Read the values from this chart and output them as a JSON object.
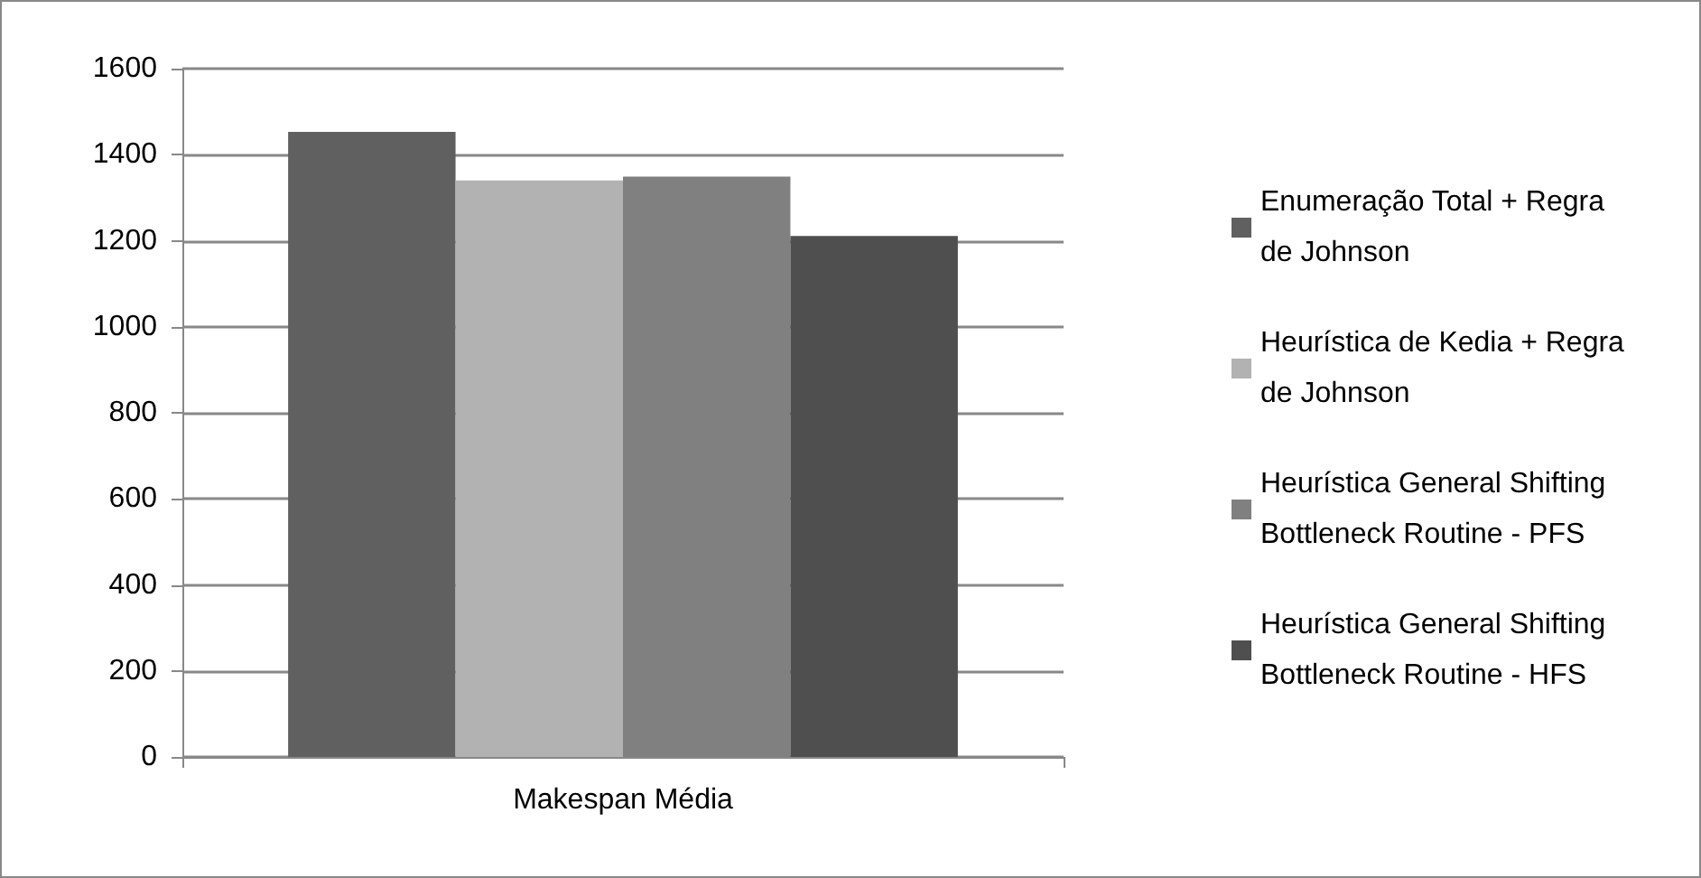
{
  "chart_data": {
    "type": "bar",
    "categories": [
      "Makespan Média"
    ],
    "series": [
      {
        "name": "Enumeração Total + Regra de Johnson",
        "color": "#606060",
        "values": [
          1453
        ]
      },
      {
        "name": "Heurística de Kedia + Regra de Johnson",
        "color": "#b2b2b2",
        "values": [
          1340
        ]
      },
      {
        "name": "Heurística General Shifting Bottleneck Routine - PFS",
        "color": "#808080",
        "values": [
          1349
        ]
      },
      {
        "name": "Heurística General Shifting Bottleneck Routine - HFS",
        "color": "#4f4f4f",
        "values": [
          1211
        ]
      }
    ],
    "ylim": [
      0,
      1600
    ],
    "yticks": [
      0,
      200,
      400,
      600,
      800,
      1000,
      1200,
      1400,
      1600
    ],
    "grid": "y",
    "legend": "right"
  }
}
